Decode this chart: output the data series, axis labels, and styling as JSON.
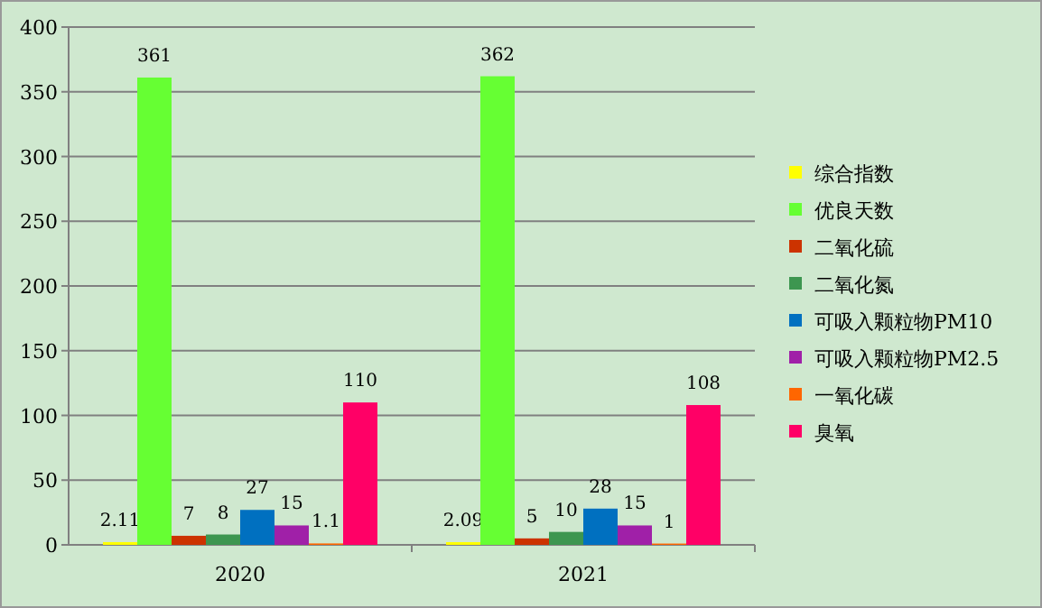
{
  "chart_data": {
    "type": "bar",
    "categories": [
      "2020",
      "2021"
    ],
    "series": [
      {
        "name": "综合指数",
        "color": "#ffff00",
        "values": [
          2.11,
          2.09
        ]
      },
      {
        "name": "优良天数",
        "color": "#66ff33",
        "values": [
          361,
          362
        ]
      },
      {
        "name": "二氧化硫",
        "color": "#cc3300",
        "values": [
          7,
          5
        ]
      },
      {
        "name": "二氧化氮",
        "color": "#3d9650",
        "values": [
          8,
          10
        ]
      },
      {
        "name": "可吸入颗粒物PM10",
        "color": "#0070c0",
        "values": [
          27,
          28
        ]
      },
      {
        "name": "可吸入颗粒物PM2.5",
        "color": "#a020a8",
        "values": [
          15,
          15
        ]
      },
      {
        "name": "一氧化碳",
        "color": "#ff6600",
        "values": [
          1.1,
          1
        ]
      },
      {
        "name": "臭氧",
        "color": "#ff0066",
        "values": [
          110,
          108
        ]
      }
    ],
    "ylim": [
      0,
      400
    ],
    "yticks": [
      0,
      50,
      100,
      150,
      200,
      250,
      300,
      350,
      400
    ],
    "grid": "y",
    "legend": "right",
    "data_labels": true
  }
}
